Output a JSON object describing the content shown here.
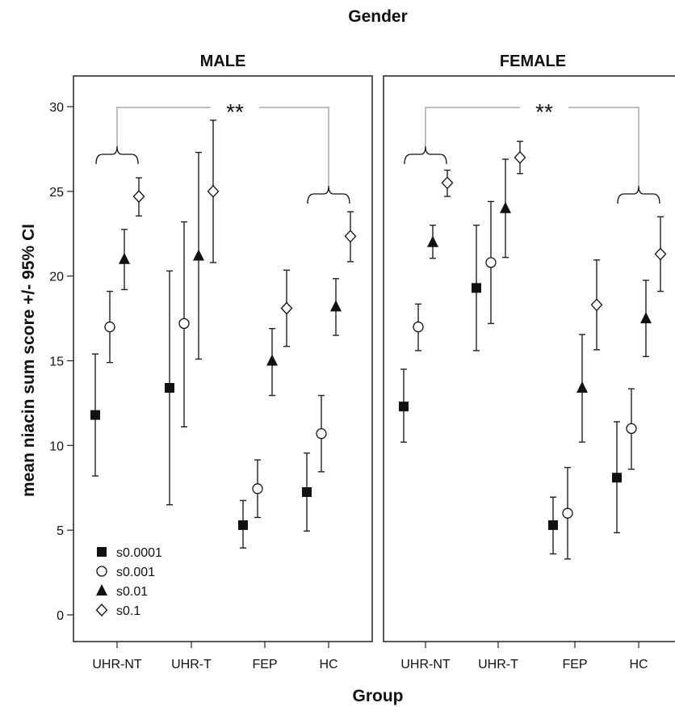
{
  "chart_data": {
    "type": "scatter",
    "title": "Gender",
    "xlabel": "Group",
    "ylabel": "mean niacin sum score +/- 95% CI",
    "ylim": [
      0,
      30
    ],
    "yticks": [
      0,
      5,
      10,
      15,
      20,
      25,
      30
    ],
    "categories": [
      "UHR-NT",
      "UHR-T",
      "FEP",
      "HC"
    ],
    "grid": false,
    "legend_position": "bottom-left of first panel",
    "significance_label": "**",
    "panels": [
      {
        "name": "MALE",
        "series": [
          {
            "name": "s0.0001",
            "marker": "filled-square",
            "values": [
              11.8,
              13.4,
              5.3,
              7.25
            ],
            "ci_low": [
              8.2,
              6.5,
              3.95,
              4.95
            ],
            "ci_high": [
              15.4,
              20.3,
              6.75,
              9.55
            ]
          },
          {
            "name": "s0.001",
            "marker": "open-circle",
            "values": [
              17.0,
              17.2,
              7.45,
              10.7
            ],
            "ci_low": [
              14.9,
              11.1,
              5.75,
              8.45
            ],
            "ci_high": [
              19.1,
              23.2,
              9.15,
              12.95
            ]
          },
          {
            "name": "s0.01",
            "marker": "filled-triangle",
            "values": [
              21.0,
              21.2,
              15.0,
              18.2
            ],
            "ci_low": [
              19.2,
              15.1,
              12.95,
              16.5
            ],
            "ci_high": [
              22.75,
              27.3,
              16.9,
              19.85
            ]
          },
          {
            "name": "s0.1",
            "marker": "open-diamond",
            "values": [
              24.7,
              25.0,
              18.1,
              22.35
            ],
            "ci_low": [
              23.55,
              20.8,
              15.85,
              20.85
            ],
            "ci_high": [
              25.8,
              29.2,
              20.35,
              23.8
            ]
          }
        ]
      },
      {
        "name": "FEMALE",
        "series": [
          {
            "name": "s0.0001",
            "marker": "filled-square",
            "values": [
              12.3,
              19.3,
              5.3,
              8.1
            ],
            "ci_low": [
              10.2,
              15.6,
              3.6,
              4.85
            ],
            "ci_high": [
              14.5,
              23.0,
              6.95,
              11.4
            ]
          },
          {
            "name": "s0.001",
            "marker": "open-circle",
            "values": [
              17.0,
              20.8,
              6.0,
              11.0
            ],
            "ci_low": [
              15.6,
              17.2,
              3.3,
              8.6
            ],
            "ci_high": [
              18.35,
              24.4,
              8.7,
              13.35
            ]
          },
          {
            "name": "s0.01",
            "marker": "filled-triangle",
            "values": [
              22.0,
              24.0,
              13.4,
              17.5
            ],
            "ci_low": [
              21.05,
              21.1,
              10.2,
              15.25
            ],
            "ci_high": [
              23.0,
              26.9,
              16.55,
              19.75
            ]
          },
          {
            "name": "s0.1",
            "marker": "open-diamond",
            "values": [
              25.5,
              27.0,
              18.3,
              21.3
            ],
            "ci_low": [
              24.7,
              26.05,
              15.65,
              19.1
            ],
            "ci_high": [
              26.25,
              27.95,
              20.95,
              23.5
            ]
          }
        ]
      }
    ]
  }
}
